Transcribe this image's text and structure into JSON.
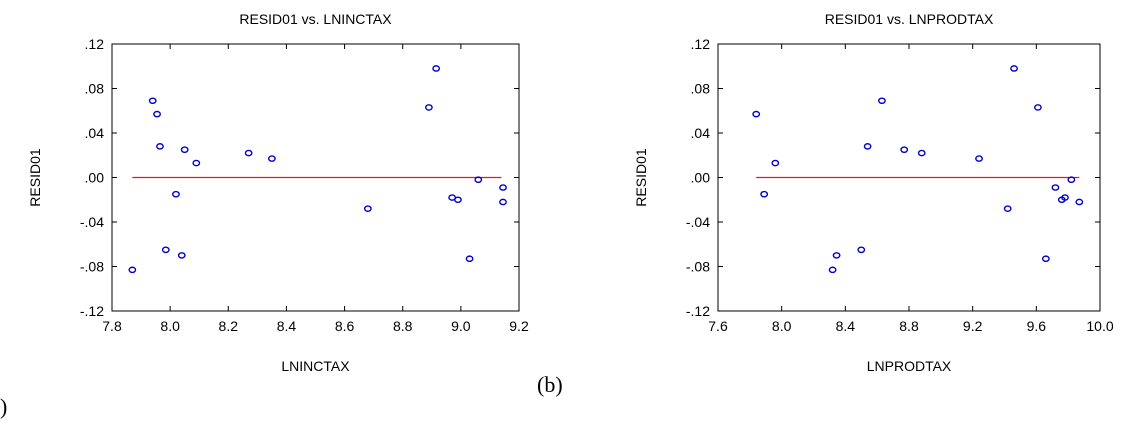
{
  "chart_data": [
    {
      "type": "scatter",
      "title": "RESID01 vs. LNINCTAX",
      "xlabel": "LNINCTAX",
      "ylabel": "RESID01",
      "xlim": [
        7.8,
        9.2
      ],
      "ylim": [
        -0.12,
        0.12
      ],
      "xticks": [
        "7.8",
        "8.0",
        "8.2",
        "8.4",
        "8.6",
        "8.8",
        "9.0",
        "9.2"
      ],
      "yticks": [
        ".12",
        ".08",
        ".04",
        ".00",
        "-.04",
        "-.08",
        "-.12"
      ],
      "grid": false,
      "reference_line": {
        "y": 0.0,
        "x_from": 7.87,
        "x_to": 9.14,
        "color": "#e31a1c"
      },
      "marker_color": "#0000cc",
      "points": [
        {
          "x": 7.87,
          "y": -0.083
        },
        {
          "x": 7.94,
          "y": 0.069
        },
        {
          "x": 7.955,
          "y": 0.057
        },
        {
          "x": 7.965,
          "y": 0.028
        },
        {
          "x": 7.985,
          "y": -0.065
        },
        {
          "x": 8.02,
          "y": -0.015
        },
        {
          "x": 8.04,
          "y": -0.07
        },
        {
          "x": 8.05,
          "y": 0.025
        },
        {
          "x": 8.09,
          "y": 0.013
        },
        {
          "x": 8.27,
          "y": 0.022
        },
        {
          "x": 8.35,
          "y": 0.017
        },
        {
          "x": 8.68,
          "y": -0.028
        },
        {
          "x": 8.89,
          "y": 0.063
        },
        {
          "x": 8.915,
          "y": 0.098
        },
        {
          "x": 8.97,
          "y": -0.018
        },
        {
          "x": 8.99,
          "y": -0.02
        },
        {
          "x": 9.03,
          "y": -0.073
        },
        {
          "x": 9.06,
          "y": -0.002
        },
        {
          "x": 9.145,
          "y": -0.009
        },
        {
          "x": 9.145,
          "y": -0.022
        }
      ]
    },
    {
      "type": "scatter",
      "title": "RESID01 vs. LNPRODTAX",
      "xlabel": "LNPRODTAX",
      "ylabel": "RESID01",
      "xlim": [
        7.6,
        10.0
      ],
      "ylim": [
        -0.12,
        0.12
      ],
      "xticks": [
        "7.6",
        "8.0",
        "8.4",
        "8.8",
        "9.2",
        "9.6",
        "10.0"
      ],
      "yticks": [
        ".12",
        ".08",
        ".04",
        ".00",
        "-.04",
        "-.08",
        "-.12"
      ],
      "grid": false,
      "reference_line": {
        "y": 0.0,
        "x_from": 7.84,
        "x_to": 9.87,
        "color": "#e31a1c"
      },
      "marker_color": "#0000cc",
      "points": [
        {
          "x": 7.84,
          "y": 0.057
        },
        {
          "x": 7.89,
          "y": -0.015
        },
        {
          "x": 7.96,
          "y": 0.013
        },
        {
          "x": 8.32,
          "y": -0.083
        },
        {
          "x": 8.345,
          "y": -0.07
        },
        {
          "x": 8.5,
          "y": -0.065
        },
        {
          "x": 8.54,
          "y": 0.028
        },
        {
          "x": 8.63,
          "y": 0.069
        },
        {
          "x": 8.77,
          "y": 0.025
        },
        {
          "x": 8.88,
          "y": 0.022
        },
        {
          "x": 9.24,
          "y": 0.017
        },
        {
          "x": 9.42,
          "y": -0.028
        },
        {
          "x": 9.46,
          "y": 0.098
        },
        {
          "x": 9.61,
          "y": 0.063
        },
        {
          "x": 9.66,
          "y": -0.073
        },
        {
          "x": 9.72,
          "y": -0.009
        },
        {
          "x": 9.76,
          "y": -0.02
        },
        {
          "x": 9.78,
          "y": -0.018
        },
        {
          "x": 9.82,
          "y": -0.002
        },
        {
          "x": 9.87,
          "y": -0.022
        }
      ]
    }
  ],
  "captions": {
    "a": ")",
    "b": "(b)"
  }
}
